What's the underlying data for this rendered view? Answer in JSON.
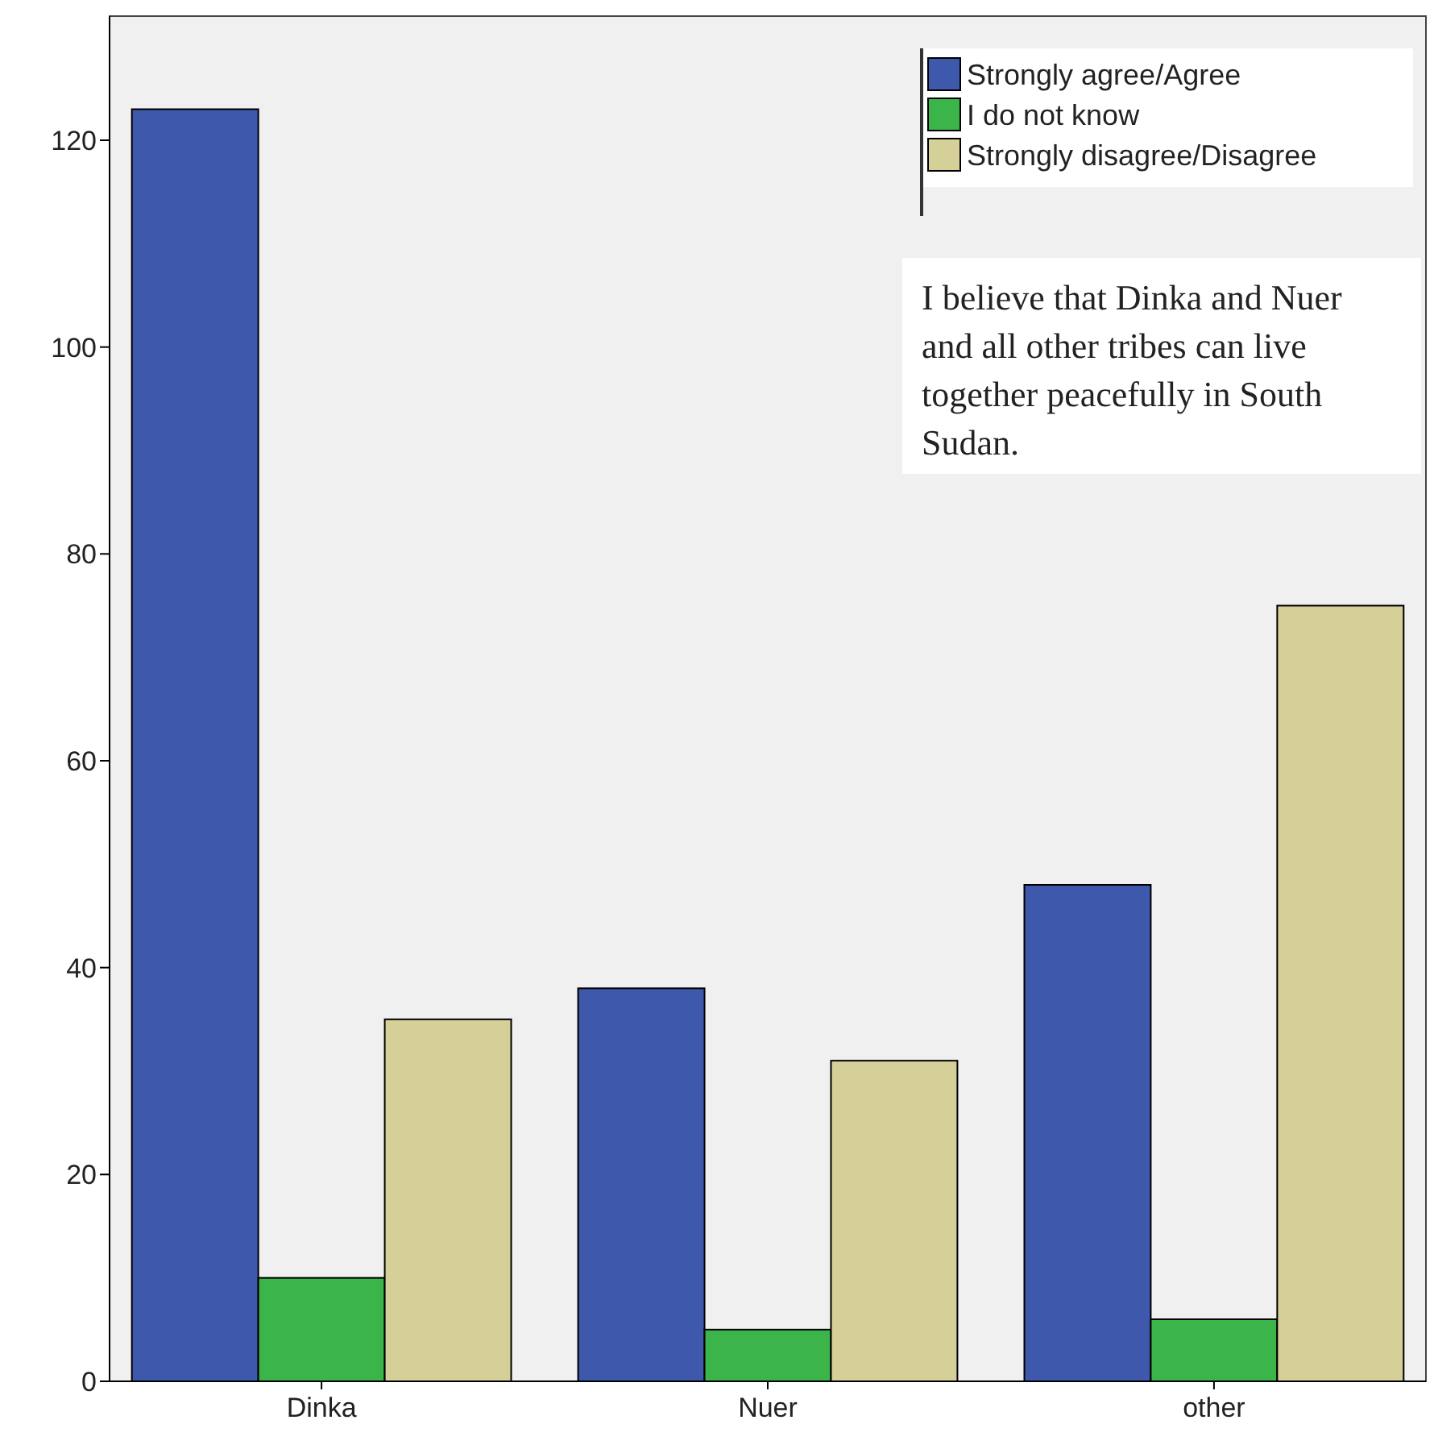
{
  "chart_data": {
    "type": "bar",
    "categories": [
      "Dinka",
      "Nuer",
      "other"
    ],
    "series": [
      {
        "name": "Strongly agree/Agree",
        "color": "#3e58ac",
        "values": [
          123,
          38,
          48
        ]
      },
      {
        "name": "I do not know",
        "color": "#3bb44a",
        "values": [
          10,
          5,
          6
        ]
      },
      {
        "name": "Strongly disagree/Disagree",
        "color": "#d5cf98",
        "values": [
          35,
          31,
          75
        ]
      }
    ],
    "ylim": [
      0,
      132
    ],
    "yticks": [
      0,
      20,
      40,
      60,
      80,
      100,
      120
    ],
    "grid": false,
    "legend": "top right",
    "annotations": [
      "I believe that Dinka and Nuer and all other tribes can live together peacefully in South Sudan."
    ]
  }
}
